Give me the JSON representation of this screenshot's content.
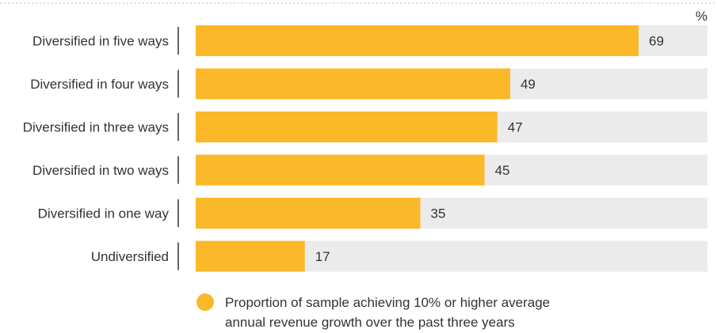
{
  "chart_data": {
    "type": "bar",
    "orientation": "horizontal",
    "unit_label": "%",
    "categories": [
      "Diversified in five ways",
      "Diversified in four ways",
      "Diversified in three ways",
      "Diversified in two ways",
      "Diversified in one way",
      "Undiversified"
    ],
    "values": [
      69,
      49,
      47,
      45,
      35,
      17
    ],
    "value_labels": [
      "69",
      "49",
      "47",
      "45",
      "35",
      "17"
    ],
    "xlim": [
      0,
      100
    ],
    "grid": false,
    "legend_position": "bottom",
    "series": [
      {
        "name": "Proportion of sample achieving 10% or higher average annual revenue growth over the past three years",
        "values": [
          69,
          49,
          47,
          45,
          35,
          17
        ]
      }
    ],
    "legend_lines": [
      "Proportion of sample achieving 10% or higher average",
      "annual revenue growth over the past three years"
    ]
  },
  "colors": {
    "bar": "#FBB829",
    "track": "#EBEBEB",
    "text": "#333333",
    "axis": "#333333",
    "dotted_line": "#BBBBBB"
  }
}
